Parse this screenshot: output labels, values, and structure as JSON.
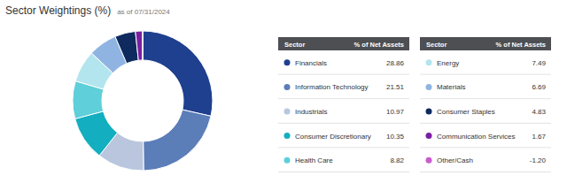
{
  "chart_data": {
    "type": "donut",
    "title": "Sector Weightings (%)",
    "subtitle": "as of 07/31/2024",
    "columns": [
      "Sector",
      "% of Net Assets"
    ],
    "categories": [
      "Financials",
      "Information Technology",
      "Industrials",
      "Consumer Discretionary",
      "Health Care",
      "Energy",
      "Materials",
      "Consumer Staples",
      "Communication Services",
      "Other/Cash"
    ],
    "values": [
      28.86,
      21.51,
      10.97,
      10.35,
      8.82,
      7.49,
      6.69,
      4.83,
      1.67,
      -1.2
    ],
    "value_labels": [
      "28.86",
      "21.51",
      "10.97",
      "10.35",
      "8.82",
      "7.49",
      "6.69",
      "4.83",
      "1.67",
      "-1.20"
    ],
    "colors": [
      "#1f3f8f",
      "#5b7db8",
      "#b9c6de",
      "#13aebf",
      "#5fcfd9",
      "#b3e5ee",
      "#8fb4e2",
      "#0e2a5e",
      "#7b1fa2",
      "#c95ccc"
    ],
    "legend": "right"
  }
}
